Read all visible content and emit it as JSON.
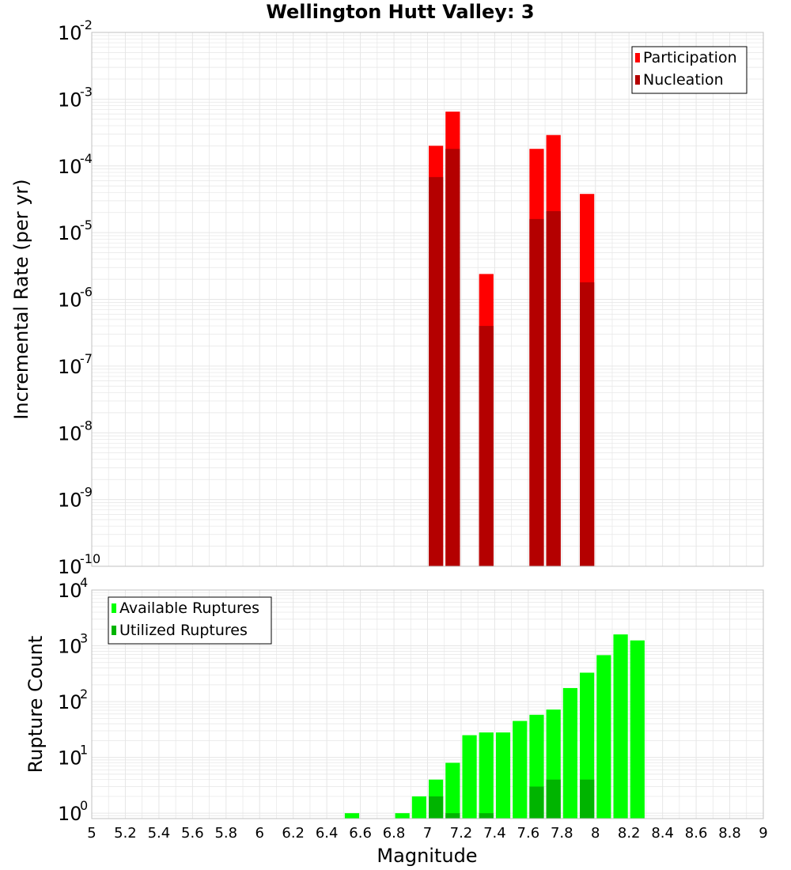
{
  "title": "Wellington Hutt Valley: 3",
  "xlabel": "Magnitude",
  "colors": {
    "participation": "#ff0000",
    "nucleation": "#b40000",
    "available": "#00ff00",
    "utilized": "#00b400",
    "grid": "#e6e6e6",
    "frame": "#c0c0c0"
  },
  "chart_data": [
    {
      "type": "bar",
      "name": "rate-panel",
      "ylabel": "Incremental Rate (per yr)",
      "yscale": "log",
      "ylim": [
        1e-10,
        0.01
      ],
      "xlim": [
        5,
        9
      ],
      "bin_width": 0.1,
      "legend_position": "top-right",
      "yticks": [
        {
          "base": "10",
          "exp": "-10",
          "value": 1e-10
        },
        {
          "base": "10",
          "exp": "-9",
          "value": 1e-09
        },
        {
          "base": "10",
          "exp": "-8",
          "value": 1e-08
        },
        {
          "base": "10",
          "exp": "-7",
          "value": 1e-07
        },
        {
          "base": "10",
          "exp": "-6",
          "value": 1e-06
        },
        {
          "base": "10",
          "exp": "-5",
          "value": 1e-05
        },
        {
          "base": "10",
          "exp": "-4",
          "value": 0.0001
        },
        {
          "base": "10",
          "exp": "-3",
          "value": 0.001
        },
        {
          "base": "10",
          "exp": "-2",
          "value": 0.01
        }
      ],
      "series": [
        {
          "name": "Participation",
          "color": "#ff0000",
          "x": [
            7.05,
            7.15,
            7.35,
            7.65,
            7.75,
            7.95
          ],
          "values": [
            0.0002,
            0.00065,
            2.4e-06,
            0.00018,
            0.00029,
            3.8e-05
          ]
        },
        {
          "name": "Nucleation",
          "color": "#b40000",
          "x": [
            7.05,
            7.15,
            7.35,
            7.65,
            7.75,
            7.95
          ],
          "values": [
            6.8e-05,
            0.00018,
            4e-07,
            1.6e-05,
            2.1e-05,
            1.8e-06
          ]
        }
      ]
    },
    {
      "type": "bar",
      "name": "count-panel",
      "ylabel": "Rupture Count",
      "yscale": "log",
      "ylim": [
        0.8,
        10000
      ],
      "xlim": [
        5,
        9
      ],
      "bin_width": 0.1,
      "legend_position": "top-left",
      "yticks": [
        {
          "base": "10",
          "exp": "0",
          "value": 1
        },
        {
          "base": "10",
          "exp": "1",
          "value": 10
        },
        {
          "base": "10",
          "exp": "2",
          "value": 100
        },
        {
          "base": "10",
          "exp": "3",
          "value": 1000
        },
        {
          "base": "10",
          "exp": "4",
          "value": 10000
        }
      ],
      "xticks": [
        "5",
        "5.2",
        "5.4",
        "5.6",
        "5.8",
        "6",
        "6.2",
        "6.4",
        "6.6",
        "6.8",
        "7",
        "7.2",
        "7.4",
        "7.6",
        "7.8",
        "8",
        "8.2",
        "8.4",
        "8.6",
        "8.8",
        "9"
      ],
      "series": [
        {
          "name": "Available Ruptures",
          "color": "#00ff00",
          "x": [
            6.55,
            6.85,
            6.95,
            7.05,
            7.15,
            7.25,
            7.35,
            7.45,
            7.55,
            7.65,
            7.75,
            7.85,
            7.95,
            8.05,
            8.15,
            8.25
          ],
          "values": [
            1,
            1,
            2,
            4,
            8,
            25,
            28,
            28,
            45,
            58,
            72,
            175,
            330,
            680,
            1600,
            1250
          ]
        },
        {
          "name": "Utilized Ruptures",
          "color": "#00b400",
          "x": [
            7.05,
            7.15,
            7.35,
            7.65,
            7.75,
            7.95
          ],
          "values": [
            2,
            1,
            1,
            3,
            4,
            4
          ]
        }
      ]
    }
  ]
}
